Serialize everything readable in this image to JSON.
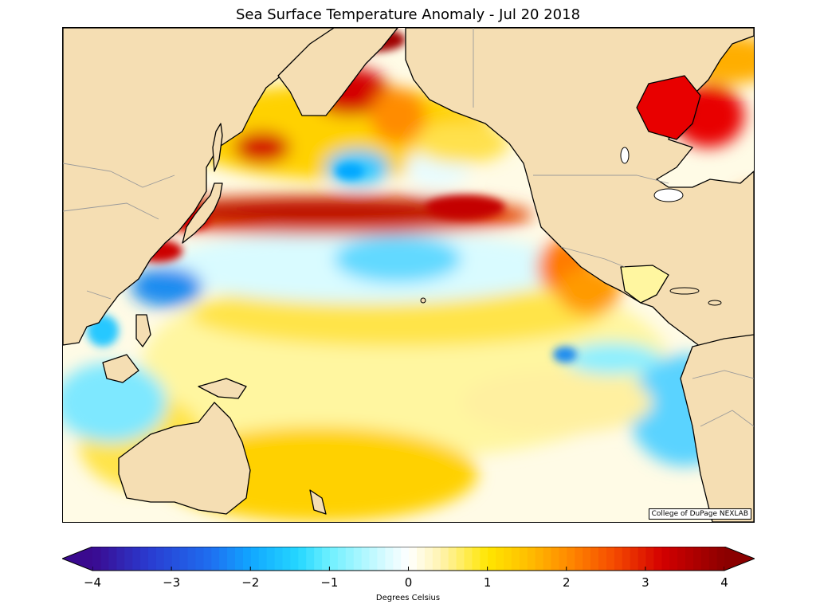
{
  "title": "Sea Surface Temperature Anomaly - Jul 20 2018",
  "credit": "College of DuPage NEXLAB",
  "colorbar": {
    "label": "Degrees Celsius",
    "ticks": [
      "−4",
      "−3",
      "−2",
      "−1",
      "0",
      "1",
      "2",
      "3",
      "4"
    ],
    "range": [
      -4,
      4
    ],
    "extend": "both",
    "stops": [
      {
        "v": -4.0,
        "c": "#3a0a8f"
      },
      {
        "v": -3.3,
        "c": "#2a3bd0"
      },
      {
        "v": -2.5,
        "c": "#1e6ff0"
      },
      {
        "v": -2.0,
        "c": "#11a7ff"
      },
      {
        "v": -1.4,
        "c": "#25d7ff"
      },
      {
        "v": -1.0,
        "c": "#6ef0ff"
      },
      {
        "v": -0.3,
        "c": "#d8fbff"
      },
      {
        "v": 0.0,
        "c": "#ffffff"
      },
      {
        "v": 0.4,
        "c": "#fff3b0"
      },
      {
        "v": 1.0,
        "c": "#ffe600"
      },
      {
        "v": 1.5,
        "c": "#ffbf00"
      },
      {
        "v": 2.0,
        "c": "#ff8c00"
      },
      {
        "v": 2.6,
        "c": "#f54a00"
      },
      {
        "v": 3.2,
        "c": "#d40000"
      },
      {
        "v": 4.0,
        "c": "#8b0000"
      }
    ]
  },
  "colors": {
    "land": "#f5deb3",
    "coastline": "#000000",
    "borders": "#9a9a9a"
  }
}
